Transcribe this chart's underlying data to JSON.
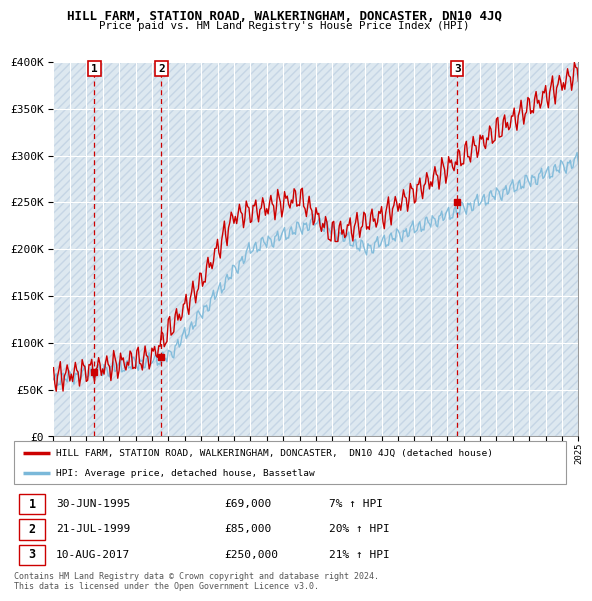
{
  "title": "HILL FARM, STATION ROAD, WALKERINGHAM, DONCASTER, DN10 4JQ",
  "subtitle": "Price paid vs. HM Land Registry's House Price Index (HPI)",
  "ylim": [
    0,
    400000
  ],
  "yticks": [
    0,
    50000,
    100000,
    150000,
    200000,
    250000,
    300000,
    350000,
    400000
  ],
  "ytick_labels": [
    "£0",
    "£50K",
    "£100K",
    "£150K",
    "£200K",
    "£250K",
    "£300K",
    "£350K",
    "£400K"
  ],
  "sale_years_float": [
    1995.5,
    1999.583,
    2017.611
  ],
  "sale_prices": [
    69000,
    85000,
    250000
  ],
  "sale_labels": [
    "1",
    "2",
    "3"
  ],
  "hpi_line_color": "#7ab8d9",
  "price_line_color": "#cc0000",
  "sale_marker_color": "#cc0000",
  "vline_color": "#cc0000",
  "bg_color": "#dde8f0",
  "hatch_color": "#c5d5e5",
  "grid_color": "#b8ccd8",
  "legend_entries": [
    "HILL FARM, STATION ROAD, WALKERINGHAM, DONCASTER,  DN10 4JQ (detached house)",
    "HPI: Average price, detached house, Bassetlaw"
  ],
  "table_rows": [
    [
      "1",
      "30-JUN-1995",
      "£69,000",
      "7% ↑ HPI"
    ],
    [
      "2",
      "21-JUL-1999",
      "£85,000",
      "20% ↑ HPI"
    ],
    [
      "3",
      "10-AUG-2017",
      "£250,000",
      "21% ↑ HPI"
    ]
  ],
  "footnote": "Contains HM Land Registry data © Crown copyright and database right 2024.\nThis data is licensed under the Open Government Licence v3.0.",
  "xstart_year": 1993,
  "xend_year": 2025
}
